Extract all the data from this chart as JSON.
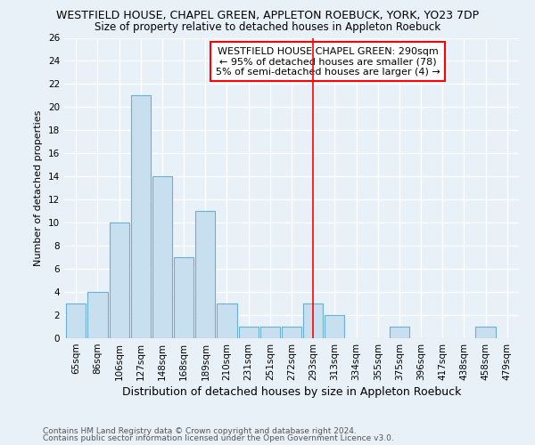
{
  "title1": "WESTFIELD HOUSE, CHAPEL GREEN, APPLETON ROEBUCK, YORK, YO23 7DP",
  "title2": "Size of property relative to detached houses in Appleton Roebuck",
  "xlabel": "Distribution of detached houses by size in Appleton Roebuck",
  "ylabel": "Number of detached properties",
  "categories": [
    "65sqm",
    "86sqm",
    "106sqm",
    "127sqm",
    "148sqm",
    "168sqm",
    "189sqm",
    "210sqm",
    "231sqm",
    "251sqm",
    "272sqm",
    "293sqm",
    "313sqm",
    "334sqm",
    "355sqm",
    "375sqm",
    "396sqm",
    "417sqm",
    "438sqm",
    "458sqm",
    "479sqm"
  ],
  "values": [
    3,
    4,
    10,
    21,
    14,
    7,
    11,
    3,
    1,
    1,
    1,
    3,
    2,
    0,
    0,
    1,
    0,
    0,
    0,
    1,
    0
  ],
  "bar_color": "#c8dff0",
  "bar_edge_color": "#6baed6",
  "red_line_index": 11,
  "annotation_text": "WESTFIELD HOUSE CHAPEL GREEN: 290sqm\n← 95% of detached houses are smaller (78)\n5% of semi-detached houses are larger (4) →",
  "annotation_box_color": "white",
  "annotation_box_edge_color": "red",
  "ylim": [
    0,
    26
  ],
  "yticks": [
    0,
    2,
    4,
    6,
    8,
    10,
    12,
    14,
    16,
    18,
    20,
    22,
    24,
    26
  ],
  "footer1": "Contains HM Land Registry data © Crown copyright and database right 2024.",
  "footer2": "Contains public sector information licensed under the Open Government Licence v3.0.",
  "bg_color": "#e8f0f8",
  "grid_color": "white",
  "title1_fontsize": 9.0,
  "title2_fontsize": 8.5,
  "xlabel_fontsize": 9.0,
  "ylabel_fontsize": 8.0,
  "tick_fontsize": 7.5,
  "annotation_fontsize": 8.0,
  "footer_fontsize": 6.5
}
